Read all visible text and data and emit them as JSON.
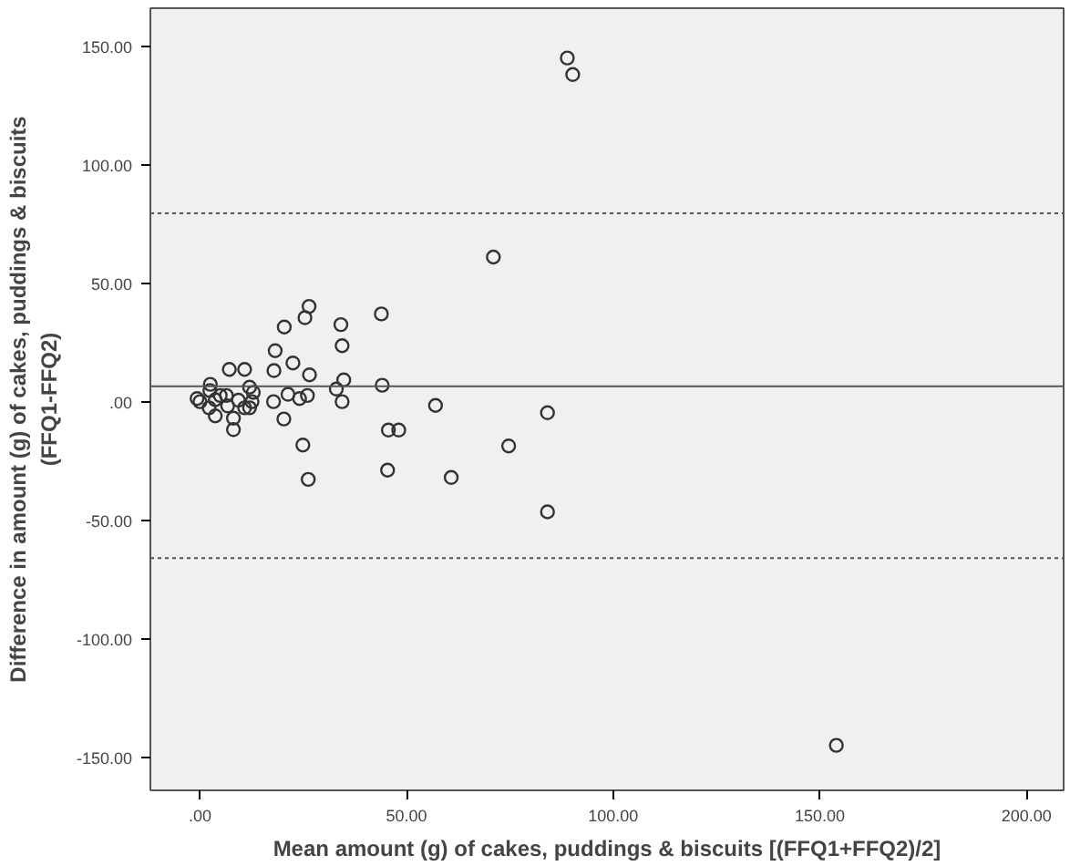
{
  "chart_data": {
    "type": "scatter",
    "xlabel": "Mean amount (g) of cakes, puddings & biscuits [(FFQ1+FFQ2)/2]",
    "ylabel": "Difference in amount (g) of cakes, puddings & biscuits\n(FFQ1-FFQ2)",
    "xlim": [
      -12,
      209
    ],
    "ylim": [
      -164,
      166
    ],
    "xticks": [
      {
        "value": 0,
        "label": ".00"
      },
      {
        "value": 50,
        "label": "50.00"
      },
      {
        "value": 100,
        "label": "100.00"
      },
      {
        "value": 150,
        "label": "150.00"
      },
      {
        "value": 200,
        "label": "200.00"
      }
    ],
    "yticks": [
      {
        "value": -150,
        "label": "-150.00"
      },
      {
        "value": -100,
        "label": "-100.00"
      },
      {
        "value": -50,
        "label": "-50.00"
      },
      {
        "value": 0,
        "label": ".00"
      },
      {
        "value": 50,
        "label": "50.00"
      },
      {
        "value": 100,
        "label": "100.00"
      },
      {
        "value": 150,
        "label": "150.00"
      }
    ],
    "grid": false,
    "marker": "circle",
    "ref_lines": [
      {
        "axis": "y",
        "value": 6.5,
        "label": null,
        "color": "#555555",
        "line_style": "solid"
      },
      {
        "axis": "y",
        "value": 79.5,
        "label": null,
        "color": "#555555",
        "line_style": "dashed"
      },
      {
        "axis": "y",
        "value": -66,
        "label": null,
        "color": "#555555",
        "line_style": "dashed"
      }
    ],
    "series": [
      {
        "color": "#333333",
        "x": [
          88.9,
          90.2,
          71,
          57,
          84.1,
          74.7,
          60.8,
          84.1,
          154,
          26.4,
          25.4,
          20.4,
          34.1,
          43.9,
          34.4,
          18.2,
          22.5,
          17.9,
          7.1,
          10.8,
          26.5,
          34.8,
          44.1,
          33,
          21.3,
          26,
          24.1,
          34.4,
          17.8,
          20.3,
          45.6,
          48.1,
          24.9,
          45.4,
          26.2,
          2.5,
          2.4,
          -0.7,
          3.7,
          6.4,
          2.2,
          3.7,
          6.7,
          9.3,
          8.1,
          8.1,
          10.8,
          12,
          12.9,
          12.6,
          12,
          0,
          4.9
        ],
        "values": [
          145,
          138,
          61,
          -1.6,
          -4.7,
          -18.7,
          -32,
          -46.5,
          -145,
          40.2,
          35.4,
          31.5,
          32.5,
          37,
          23.6,
          21.5,
          16.3,
          13.1,
          13.6,
          13.6,
          11.3,
          9.2,
          6.9,
          5.3,
          3.1,
          2.6,
          1.3,
          0,
          0,
          -7.3,
          -12,
          -12,
          -18.3,
          -28.9,
          -32.8,
          7.3,
          4.7,
          1.3,
          0.8,
          2.6,
          -2.6,
          -6,
          -1.8,
          0.6,
          -7,
          -11.8,
          -2.6,
          6.1,
          3.9,
          0,
          -2.6,
          0,
          2.6
        ]
      }
    ]
  }
}
